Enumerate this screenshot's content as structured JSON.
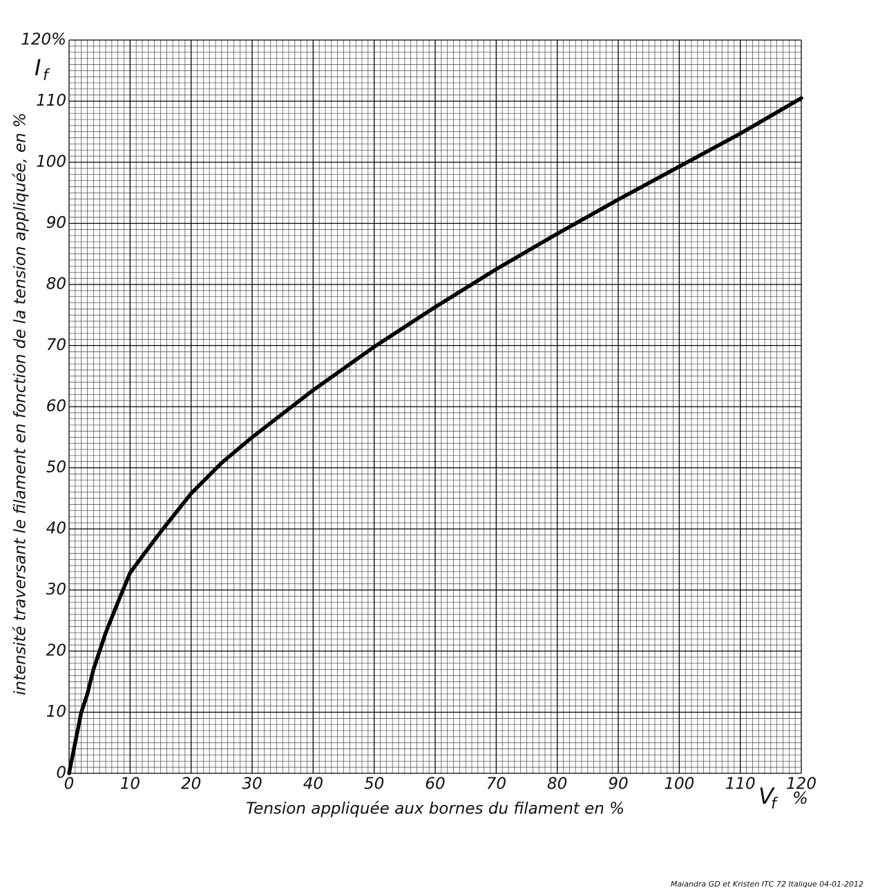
{
  "chart_data": {
    "type": "line",
    "y_label": "intensité traversant le filament en fonction de la tension appliquée, en %",
    "x_label": "Tension appliquée aux bornes du filament en %",
    "y_symbol": "I",
    "y_symbol_sub": "f",
    "x_symbol": "V",
    "x_symbol_sub": "f",
    "x_unit": "%",
    "footnote": "Maiandra GD et Kristen ITC  72  Italique  04-01-2012",
    "x": [
      0,
      1,
      2,
      3,
      4,
      5,
      6,
      8,
      10,
      12,
      15,
      20,
      25,
      30,
      40,
      50,
      60,
      70,
      80,
      90,
      100,
      110,
      120
    ],
    "values": [
      0,
      5,
      10,
      13,
      17,
      20,
      23,
      28,
      32.8,
      35.5,
      39.5,
      45.8,
      50.8,
      55,
      62.7,
      69.8,
      76.3,
      82.5,
      88.3,
      93.9,
      99.3,
      104.7,
      110.5
    ],
    "color": "#000000",
    "xlim": [
      0,
      120
    ],
    "ylim": [
      0,
      120
    ],
    "xticks": [
      0,
      10,
      20,
      30,
      40,
      50,
      60,
      70,
      80,
      90,
      100,
      110,
      120
    ],
    "yticks": [
      0,
      10,
      20,
      30,
      40,
      50,
      60,
      70,
      80,
      90,
      100,
      110,
      {
        "value": 120,
        "label": "120%"
      }
    ],
    "grid": true,
    "minor_grid": true
  }
}
